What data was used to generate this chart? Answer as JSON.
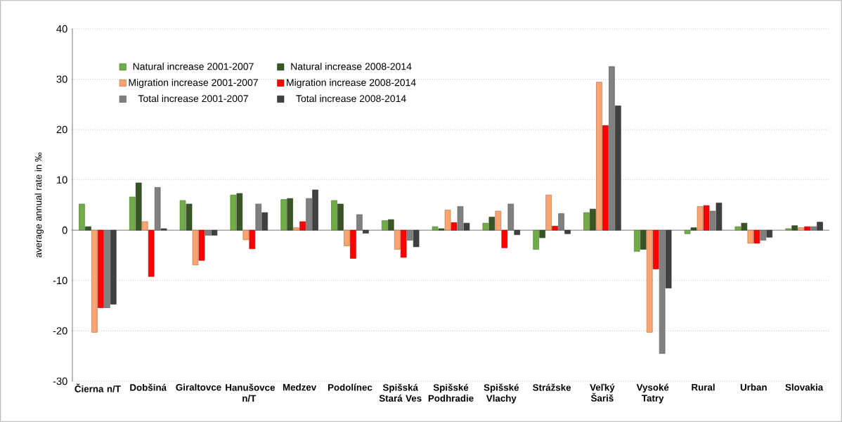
{
  "chart_data": {
    "type": "bar",
    "ylabel": "average annual  rate in ‰",
    "categories": [
      "Čierna n/T",
      "Dobšiná",
      "Giraltovce",
      "Hanušovce n/T",
      "Medzev",
      "Podolínec",
      "Spišská Stará Ves",
      "Spišské Podhradie",
      "Spišské Vlachy",
      "Strážske",
      "Veľký Šariš",
      "Vysoké Tatry",
      "Rural",
      "Urban",
      "Slovakia"
    ],
    "series": [
      {
        "name": "Natural increase 2001-2007",
        "color": "#70ad47",
        "values": [
          5.2,
          6.6,
          5.9,
          7.0,
          6.1,
          5.9,
          1.9,
          0.7,
          1.4,
          -3.8,
          3.5,
          -4.2,
          -0.7,
          0.7,
          0.3
        ]
      },
      {
        "name": "Natural increase 2008-2014",
        "color": "#375623",
        "values": [
          0.7,
          9.4,
          5.2,
          7.3,
          6.3,
          5.2,
          2.1,
          0.3,
          2.6,
          -1.5,
          4.2,
          -3.8,
          0.5,
          1.4,
          0.9
        ]
      },
      {
        "name": "Migration increase 2001-2007",
        "color": "#fca36f",
        "values": [
          -20.3,
          1.7,
          -6.9,
          -1.9,
          0.5,
          -3.1,
          -3.8,
          4.0,
          3.8,
          7.0,
          29.4,
          -20.3,
          4.7,
          -2.6,
          0.5
        ]
      },
      {
        "name": "Migration increase 2008-2014",
        "color": "#ff0000",
        "values": [
          -15.4,
          -9.2,
          -6.0,
          -3.7,
          1.7,
          -5.6,
          -5.4,
          1.5,
          -3.5,
          0.8,
          20.8,
          -7.7,
          4.9,
          -2.6,
          0.7
        ]
      },
      {
        "name": "Total increase 2001-2007",
        "color": "#808080",
        "values": [
          -15.4,
          8.5,
          -1.0,
          5.2,
          6.3,
          3.1,
          -2.0,
          4.7,
          5.2,
          3.3,
          32.5,
          -24.5,
          3.8,
          -2.0,
          0.7
        ]
      },
      {
        "name": "Total increase 2008-2014",
        "color": "#404040",
        "values": [
          -14.7,
          0.3,
          -1.0,
          3.5,
          8.0,
          -0.6,
          -3.3,
          1.4,
          -0.9,
          -0.7,
          24.7,
          -11.5,
          5.4,
          -1.4,
          1.6
        ]
      }
    ],
    "ylim": [
      -30,
      40
    ],
    "yticks": [
      -30,
      -20,
      -10,
      0,
      10,
      20,
      30,
      40
    ],
    "grid": "y",
    "legend": "top left"
  }
}
